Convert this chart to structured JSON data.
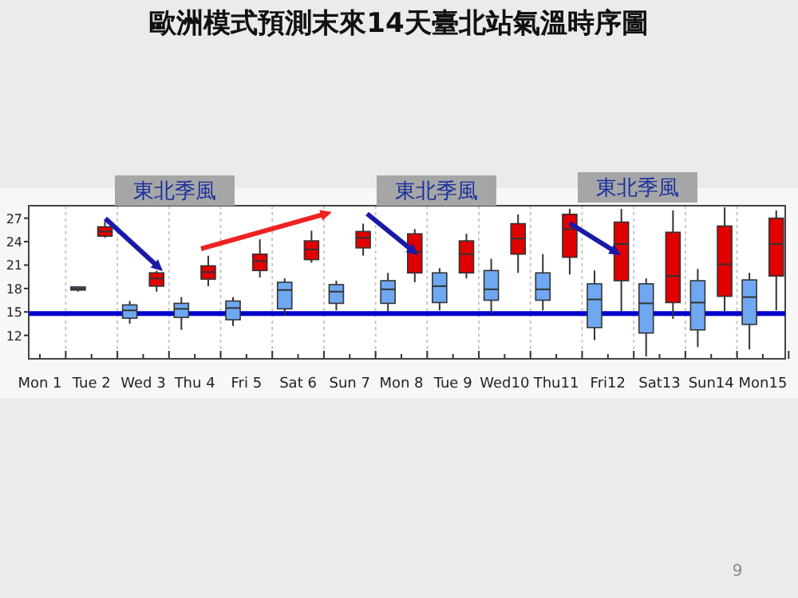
{
  "chart_data": {
    "type": "box",
    "title": "歐洲模式預測末來14天臺北站氣溫時序圖",
    "categories": [
      "Mon 1",
      "Tue 2",
      "Wed 3",
      "Thu 4",
      "Fri 5",
      "Sat 6",
      "Sun 7",
      "Mon 8",
      "Tue 9",
      "Wed10",
      "Thu11",
      "Fri12",
      "Sat13",
      "Sun14",
      "Mon15"
    ],
    "series": [
      {
        "color": "#6fa8f0",
        "boxes": [
          null,
          {
            "low": 17.6,
            "q1": 17.8,
            "median": 18.0,
            "q3": 18.2,
            "high": 18.3
          },
          {
            "low": 13.5,
            "q1": 14.2,
            "median": 15.2,
            "q3": 15.9,
            "high": 16.4
          },
          {
            "low": 12.7,
            "q1": 14.3,
            "median": 15.4,
            "q3": 16.1,
            "high": 16.9
          },
          {
            "low": 13.2,
            "q1": 14.0,
            "median": 15.5,
            "q3": 16.4,
            "high": 16.9
          },
          {
            "low": 14.5,
            "q1": 15.4,
            "median": 17.8,
            "q3": 18.8,
            "high": 19.3
          },
          {
            "low": 15.2,
            "q1": 16.1,
            "median": 17.6,
            "q3": 18.5,
            "high": 19.0
          },
          {
            "low": 15.0,
            "q1": 16.1,
            "median": 17.9,
            "q3": 19.0,
            "high": 20.0
          },
          {
            "low": 15.2,
            "q1": 16.2,
            "median": 18.3,
            "q3": 20.0,
            "high": 20.6
          },
          {
            "low": 14.8,
            "q1": 16.5,
            "median": 17.9,
            "q3": 20.3,
            "high": 21.8
          },
          {
            "low": 15.2,
            "q1": 16.5,
            "median": 17.9,
            "q3": 20.0,
            "high": 22.4
          },
          {
            "low": 11.4,
            "q1": 13.0,
            "median": 16.6,
            "q3": 18.6,
            "high": 20.3
          },
          {
            "low": 9.3,
            "q1": 12.3,
            "median": 16.1,
            "q3": 18.6,
            "high": 19.3
          },
          {
            "low": 10.5,
            "q1": 12.7,
            "median": 16.2,
            "q3": 19.0,
            "high": 20.5
          },
          {
            "low": 10.2,
            "q1": 13.4,
            "median": 16.9,
            "q3": 19.1,
            "high": 20.0
          }
        ]
      },
      {
        "color": "#e00000",
        "boxes": [
          null,
          {
            "low": 24.5,
            "q1": 24.7,
            "median": 25.3,
            "q3": 25.9,
            "high": 26.6
          },
          {
            "low": 17.6,
            "q1": 18.3,
            "median": 19.3,
            "q3": 20.0,
            "high": 20.3
          },
          {
            "low": 18.3,
            "q1": 19.2,
            "median": 20.1,
            "q3": 20.9,
            "high": 22.2
          },
          {
            "low": 19.4,
            "q1": 20.3,
            "median": 21.5,
            "q3": 22.4,
            "high": 24.3
          },
          {
            "low": 21.3,
            "q1": 21.7,
            "median": 23.0,
            "q3": 24.1,
            "high": 25.4
          },
          {
            "low": 22.2,
            "q1": 23.2,
            "median": 24.5,
            "q3": 25.3,
            "high": 26.3
          },
          {
            "low": 18.8,
            "q1": 20.0,
            "median": 22.7,
            "q3": 25.0,
            "high": 25.6
          },
          {
            "low": 19.3,
            "q1": 20.0,
            "median": 22.4,
            "q3": 24.1,
            "high": 25.0
          },
          {
            "low": 20.0,
            "q1": 22.4,
            "median": 24.4,
            "q3": 26.3,
            "high": 27.5
          },
          {
            "low": 19.8,
            "q1": 22.0,
            "median": 25.6,
            "q3": 27.5,
            "high": 28.2
          },
          {
            "low": 15.0,
            "q1": 19.0,
            "median": 23.7,
            "q3": 26.5,
            "high": 28.2
          },
          {
            "low": 14.1,
            "q1": 16.2,
            "median": 19.6,
            "q3": 25.2,
            "high": 28.0
          },
          {
            "low": 15.0,
            "q1": 17.0,
            "median": 21.1,
            "q3": 26.0,
            "high": 28.4
          },
          {
            "low": 15.2,
            "q1": 19.6,
            "median": 23.7,
            "q3": 27.0,
            "high": 28.0
          }
        ]
      }
    ],
    "ylim": [
      9,
      28.6
    ],
    "yticks": [
      12,
      15,
      18,
      21,
      24,
      27
    ],
    "grid": "x",
    "ref_lines": [
      {
        "axis": "y",
        "value": 14.8,
        "color": "#0000cc"
      }
    ],
    "annotations": [
      "東北季風",
      "東北季風",
      "東北季風",
      "9"
    ]
  }
}
